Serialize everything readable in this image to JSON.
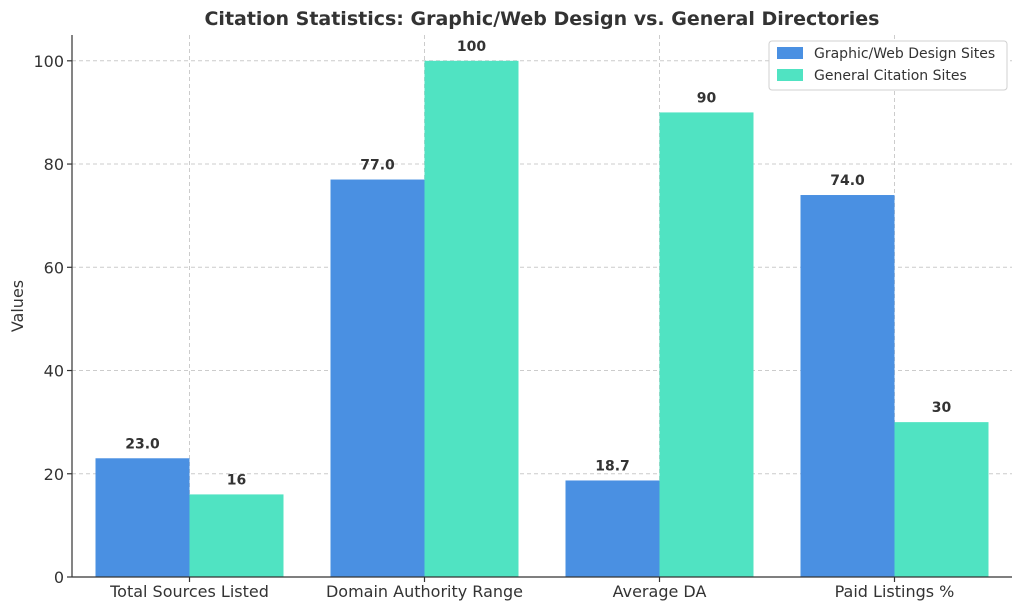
{
  "chart_data": {
    "type": "bar",
    "title": "Citation Statistics: Graphic/Web Design vs. General Directories",
    "xlabel": "",
    "ylabel": "Values",
    "categories": [
      "Total Sources Listed",
      "Domain Authority Range",
      "Average DA",
      "Paid Listings %"
    ],
    "series": [
      {
        "name": "Graphic/Web Design Sites",
        "values": [
          23.0,
          77.0,
          18.7,
          74.0
        ],
        "labels": [
          "23.0",
          "77.0",
          "18.7",
          "74.0"
        ],
        "color": "#4a90e2"
      },
      {
        "name": "General Citation Sites",
        "values": [
          16,
          100,
          90,
          30
        ],
        "labels": [
          "16",
          "100",
          "90",
          "30"
        ],
        "color": "#50e3c2"
      }
    ],
    "ylim": [
      0,
      105
    ],
    "yticks": [
      0,
      20,
      40,
      60,
      80,
      100
    ],
    "grid": true,
    "legend_position": "top-right"
  }
}
